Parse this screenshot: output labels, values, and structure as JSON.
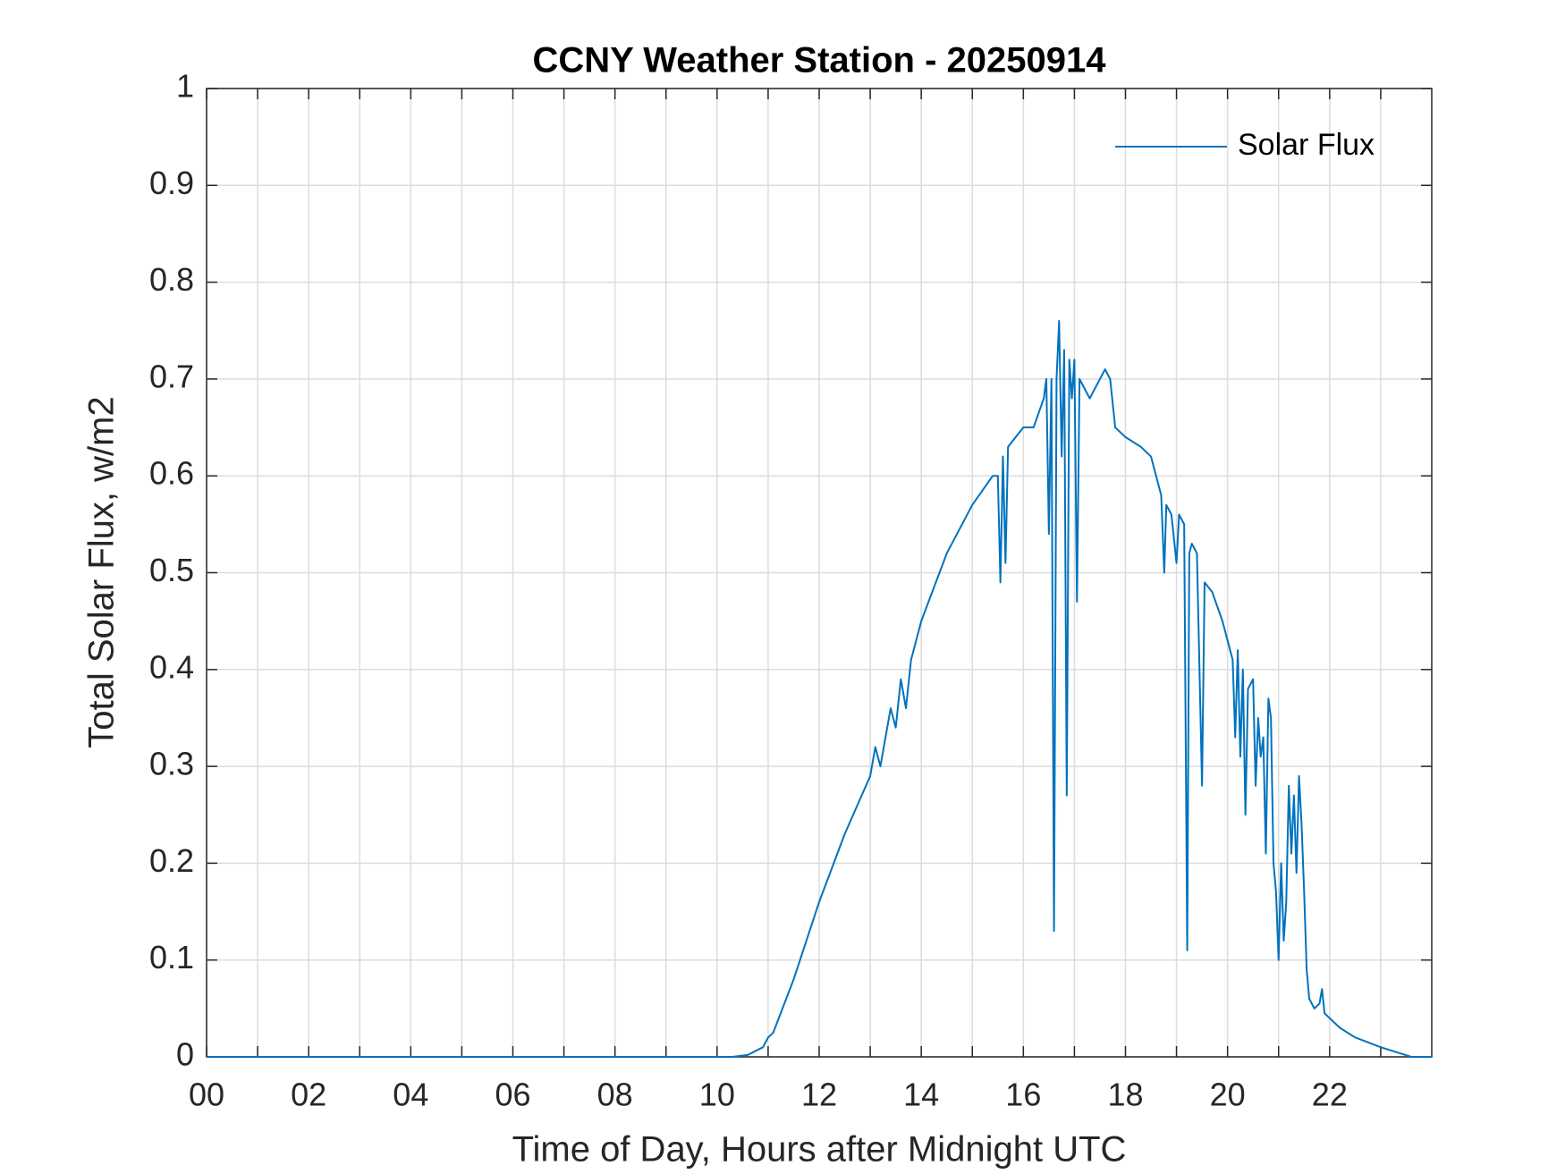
{
  "chart_data": {
    "type": "line",
    "title": "CCNY Weather Station - 20250914",
    "x_label": "Time of Day, Hours after Midnight UTC",
    "y_label": "Total Solar Flux, w/m2",
    "xlim": [
      0,
      24
    ],
    "ylim": [
      0,
      1
    ],
    "xticks": [
      {
        "value": 0,
        "label": "00"
      },
      {
        "value": 2,
        "label": "02"
      },
      {
        "value": 4,
        "label": "04"
      },
      {
        "value": 6,
        "label": "06"
      },
      {
        "value": 8,
        "label": "08"
      },
      {
        "value": 10,
        "label": "10"
      },
      {
        "value": 12,
        "label": "12"
      },
      {
        "value": 14,
        "label": "14"
      },
      {
        "value": 16,
        "label": "16"
      },
      {
        "value": 18,
        "label": "18"
      },
      {
        "value": 20,
        "label": "20"
      },
      {
        "value": 22,
        "label": "22"
      }
    ],
    "minor_xticks": [
      1,
      3,
      5,
      7,
      9,
      11,
      13,
      15,
      17,
      19,
      21,
      23
    ],
    "yticks": [
      0,
      0.1,
      0.2,
      0.3,
      0.4,
      0.5,
      0.6,
      0.7,
      0.8,
      0.9,
      1
    ],
    "grid": true,
    "legend": "northeast",
    "x": [
      0,
      10.3,
      10.6,
      10.9,
      11.0,
      11.1,
      11.5,
      12.0,
      12.5,
      13.0,
      13.1,
      13.2,
      13.3,
      13.4,
      13.5,
      13.6,
      13.7,
      13.8,
      14.0,
      14.5,
      15.0,
      15.4,
      15.5,
      15.55,
      15.6,
      15.65,
      15.7,
      16.0,
      16.2,
      16.4,
      16.45,
      16.5,
      16.55,
      16.6,
      16.65,
      16.7,
      16.75,
      16.8,
      16.85,
      16.9,
      16.95,
      17.0,
      17.05,
      17.1,
      17.3,
      17.4,
      17.6,
      17.7,
      17.8,
      18.0,
      18.3,
      18.5,
      18.7,
      18.76,
      18.8,
      18.9,
      19.0,
      19.05,
      19.15,
      19.21,
      19.25,
      19.3,
      19.4,
      19.5,
      19.55,
      19.7,
      19.9,
      20.0,
      20.1,
      20.15,
      20.2,
      20.25,
      20.3,
      20.35,
      20.4,
      20.5,
      20.55,
      20.6,
      20.65,
      20.7,
      20.75,
      20.8,
      20.85,
      20.9,
      20.95,
      21.0,
      21.05,
      21.1,
      21.15,
      21.2,
      21.25,
      21.3,
      21.35,
      21.4,
      21.45,
      21.5,
      21.55,
      21.6,
      21.7,
      21.8,
      21.85,
      21.9,
      22.0,
      22.2,
      22.5,
      23.0,
      23.3,
      23.6,
      24
    ],
    "series": [
      {
        "name": "Solar Flux",
        "color": "#0072bd",
        "values": [
          0,
          0,
          0.002,
          0.01,
          0.02,
          0.025,
          0.08,
          0.16,
          0.23,
          0.29,
          0.32,
          0.3,
          0.33,
          0.36,
          0.34,
          0.39,
          0.36,
          0.41,
          0.45,
          0.52,
          0.57,
          0.6,
          0.6,
          0.49,
          0.62,
          0.51,
          0.63,
          0.65,
          0.65,
          0.68,
          0.7,
          0.54,
          0.7,
          0.13,
          0.7,
          0.76,
          0.62,
          0.73,
          0.27,
          0.72,
          0.68,
          0.72,
          0.47,
          0.7,
          0.68,
          0.69,
          0.71,
          0.7,
          0.65,
          0.64,
          0.63,
          0.62,
          0.58,
          0.5,
          0.57,
          0.56,
          0.51,
          0.56,
          0.55,
          0.11,
          0.52,
          0.53,
          0.52,
          0.28,
          0.49,
          0.48,
          0.45,
          0.43,
          0.41,
          0.33,
          0.42,
          0.31,
          0.4,
          0.25,
          0.38,
          0.39,
          0.28,
          0.35,
          0.31,
          0.33,
          0.21,
          0.37,
          0.35,
          0.2,
          0.17,
          0.1,
          0.2,
          0.12,
          0.16,
          0.28,
          0.21,
          0.27,
          0.19,
          0.29,
          0.24,
          0.17,
          0.09,
          0.06,
          0.05,
          0.055,
          0.07,
          0.045,
          0.04,
          0.03,
          0.02,
          0.01,
          0.005,
          0,
          0
        ]
      }
    ]
  }
}
